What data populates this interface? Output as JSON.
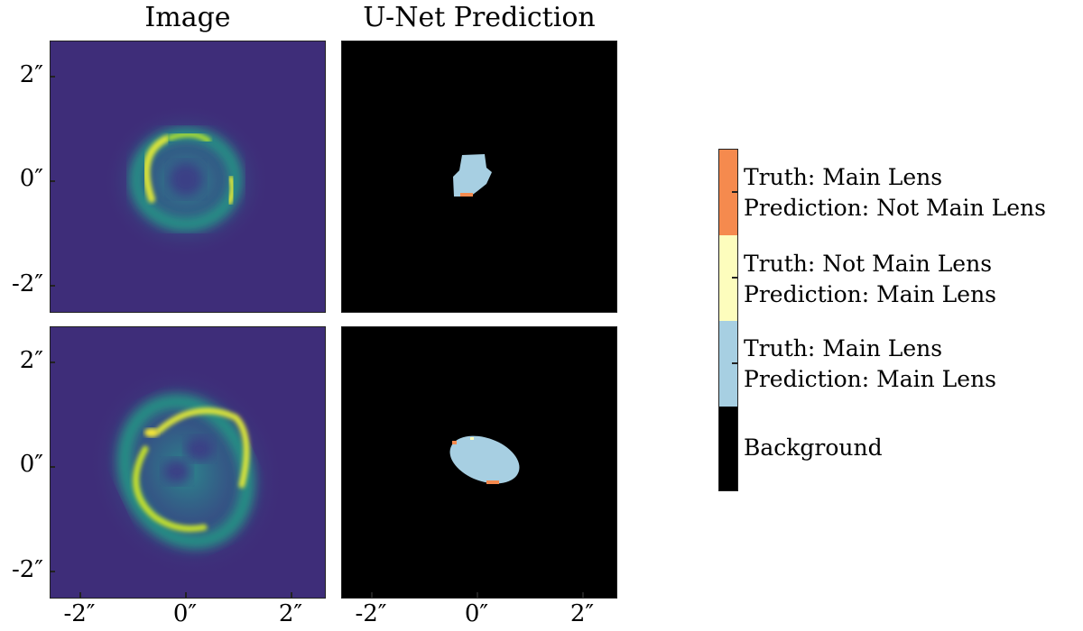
{
  "panel_titles": {
    "image": "Image",
    "prediction": "U-Net Prediction"
  },
  "y_ticks": [
    "2″",
    "0″",
    "-2″"
  ],
  "x_ticks": [
    "-2″",
    "0″",
    "2″"
  ],
  "legend": {
    "items": [
      {
        "line1": "Truth: Main Lens",
        "line2": "Prediction: Not Main Lens",
        "color": "#f58a4e"
      },
      {
        "line1": "Truth: Not Main Lens",
        "line2": "Prediction: Main Lens",
        "color": "#fdfdbd"
      },
      {
        "line1": "Truth: Main Lens",
        "line2": "Prediction: Main Lens",
        "color": "#a7cfe2"
      },
      {
        "line1": "Background",
        "line2": "",
        "color": "#000000"
      }
    ]
  },
  "colors": {
    "image_background": "#3e2d79",
    "ring": "#d9e33a",
    "glow": "#2f8e8e"
  }
}
